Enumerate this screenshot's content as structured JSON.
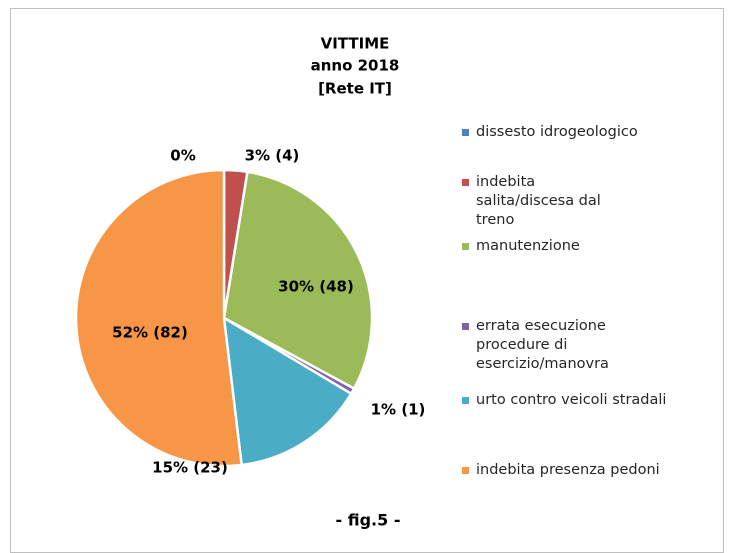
{
  "chart_data": {
    "type": "pie",
    "title": [
      "VITTIME",
      "anno 2018",
      "[Rete IT]"
    ],
    "caption": "- fig.5 -",
    "series": [
      {
        "name": "dissesto idrogeologico",
        "color": "#4f81bd",
        "values": [
          0
        ],
        "value_labels": [
          "0%"
        ]
      },
      {
        "name": "indebita salita/discesa dal treno",
        "color": "#c0504d",
        "values": [
          4
        ],
        "value_labels": [
          "3% (4)"
        ]
      },
      {
        "name": "manutenzione",
        "color": "#9bbb59",
        "values": [
          48
        ],
        "value_labels": [
          "30% (48)"
        ]
      },
      {
        "name": "errata esecuzione procedure di esercizio/manovra",
        "color": "#8064a2",
        "values": [
          1
        ],
        "value_labels": [
          "1% (1)"
        ]
      },
      {
        "name": "urto contro veicoli stradali",
        "color": "#4bacc6",
        "values": [
          23
        ],
        "value_labels": [
          "15% (23)"
        ]
      },
      {
        "name": "indebita presenza pedoni",
        "color": "#f79646",
        "values": [
          82
        ],
        "value_labels": [
          "52% (82)"
        ]
      }
    ]
  }
}
